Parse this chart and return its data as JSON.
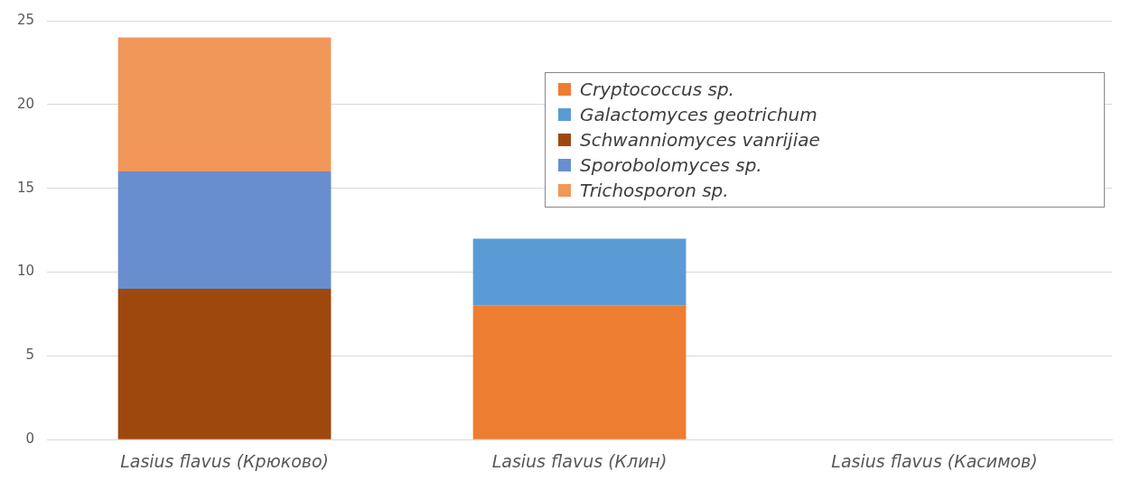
{
  "chart_data": {
    "type": "bar",
    "stacked": true,
    "categories": [
      "Lasius flavus (Крюково)",
      "Lasius flavus (Клин)",
      "Lasius flavus (Касимов)"
    ],
    "series": [
      {
        "name": "Cryptococcus sp.",
        "color": "#ed7d31",
        "values": [
          null,
          8,
          null
        ]
      },
      {
        "name": "Galactomyces geotrichum",
        "color": "#5b9bd5",
        "values": [
          null,
          4,
          null
        ]
      },
      {
        "name": "Schwanniomyces vanrijiae",
        "color": "#9e480e",
        "values": [
          9,
          null,
          null
        ]
      },
      {
        "name": "Sporobolomyces sp.",
        "color": "#698ed0",
        "values": [
          7,
          null,
          null
        ]
      },
      {
        "name": "Trichosporon sp.",
        "color": "#f1975a",
        "values": [
          8,
          null,
          null
        ]
      }
    ],
    "ylim": [
      0,
      25
    ],
    "yticks": [
      0,
      5,
      10,
      15,
      20,
      25
    ],
    "grid": "y",
    "legend": "top right"
  }
}
